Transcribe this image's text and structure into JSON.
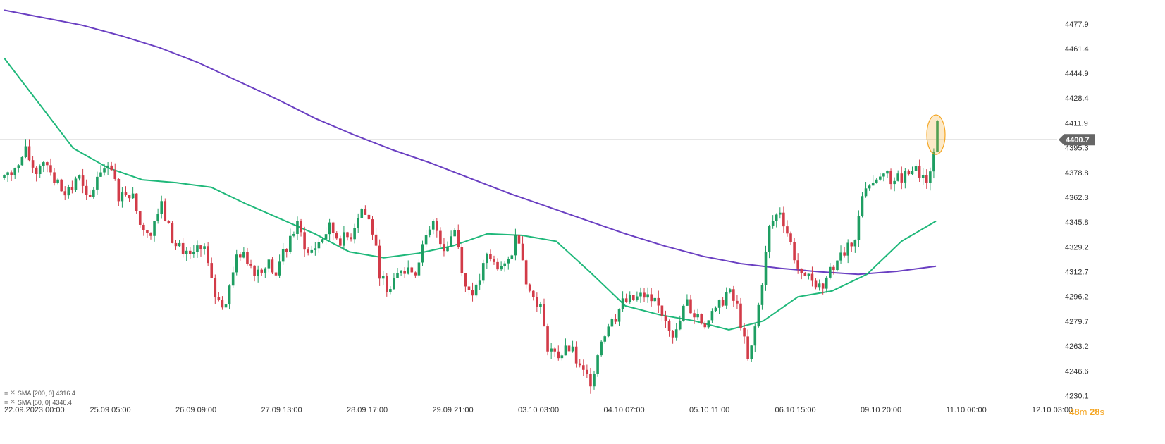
{
  "chart_data": {
    "type": "candlestick",
    "title": "",
    "xlabel": "",
    "ylabel": "",
    "ylim": [
      4228.0,
      4490.0
    ],
    "y_ticks": [
      "4477.9",
      "4461.4",
      "4444.9",
      "4428.4",
      "4411.9",
      "4395.3",
      "4378.8",
      "4362.3",
      "4345.8",
      "4329.2",
      "4312.7",
      "4296.2",
      "4279.7",
      "4263.2",
      "4246.6",
      "4230.1"
    ],
    "x_ticks": [
      "22.09.2023 00:00",
      "25.09 05:00",
      "26.09 09:00",
      "27.09 13:00",
      "28.09 17:00",
      "29.09 21:00",
      "03.10 03:00",
      "04.10 07:00",
      "05.10 11:00",
      "06.10 15:00",
      "09.10 20:00",
      "11.10 00:00",
      "12.10 03:00"
    ],
    "current_price": "4400.7",
    "colors": {
      "up": "#1e9e62",
      "down": "#d23b48",
      "sma200": "#6a3fc2",
      "sma50": "#1fb87a",
      "price_line": "#999999",
      "price_tag": "#666666",
      "highlight": "#f5a623"
    },
    "candle_anchors": [
      4375,
      4380,
      4393,
      4379,
      4390,
      4370,
      4363,
      4378,
      4357,
      4380,
      4385,
      4362,
      4369,
      4343,
      4343,
      4356,
      4335,
      4321,
      4323,
      4330,
      4298,
      4290,
      4320,
      4323,
      4313,
      4320,
      4310,
      4333,
      4343,
      4324,
      4332,
      4342,
      4334,
      4336,
      4356,
      4344,
      4305,
      4302,
      4318,
      4313,
      4330,
      4345,
      4328,
      4342,
      4302,
      4300,
      4322,
      4318,
      4318,
      4340,
      4300,
      4292,
      4257,
      4257,
      4262,
      4246,
      4240,
      4270,
      4280,
      4292,
      4294,
      4297,
      4293,
      4283,
      4269,
      4293,
      4282,
      4278,
      4287,
      4300,
      4288,
      4250,
      4292,
      4343,
      4354,
      4332,
      4308,
      4309,
      4302,
      4318,
      4330,
      4325,
      4372,
      4371,
      4375,
      4374,
      4377,
      4381,
      4368,
      4412
    ],
    "sma200": [
      4487,
      4482,
      4477,
      4470,
      4462,
      4452,
      4440,
      4428,
      4415,
      4404,
      4394,
      4385,
      4375,
      4365,
      4356,
      4347,
      4338,
      4330,
      4323,
      4318,
      4315,
      4312.7,
      4311,
      4313,
      4316.4
    ],
    "sma50": [
      4455,
      4425,
      4395,
      4382,
      4374,
      4372,
      4369,
      4358,
      4348,
      4338,
      4326,
      4322,
      4325,
      4330,
      4338,
      4337,
      4333,
      4312,
      4290,
      4284,
      4280,
      4274,
      4280,
      4296,
      4300,
      4311,
      4333,
      4346.4
    ],
    "legend": [
      {
        "label": "SMA [200, 0]",
        "value": "4316.4"
      },
      {
        "label": "SMA [50, 0]",
        "value": "4346.4"
      }
    ],
    "timer": {
      "minutes": "48",
      "m_unit": "m",
      "seconds": "28",
      "s_unit": "s"
    }
  }
}
